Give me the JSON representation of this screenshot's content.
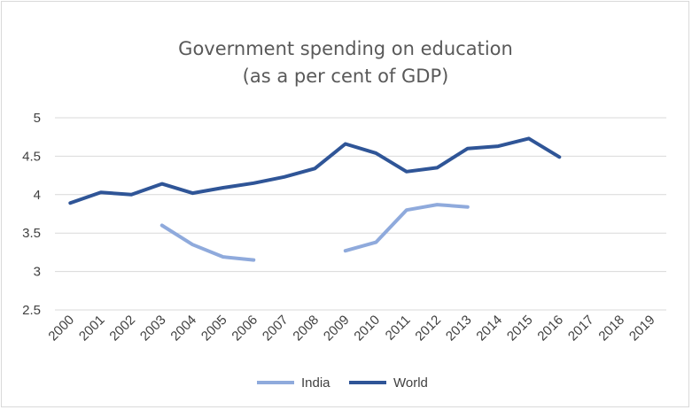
{
  "chart_data": {
    "type": "line",
    "title": [
      "Government spending on education",
      "(as a per cent of GDP)"
    ],
    "x": [
      "2000",
      "2001",
      "2002",
      "2003",
      "2004",
      "2005",
      "2006",
      "2007",
      "2008",
      "2009",
      "2010",
      "2011",
      "2012",
      "2013",
      "2014",
      "2015",
      "2016",
      "2017",
      "2018",
      "2019"
    ],
    "ylim": [
      2.5,
      5
    ],
    "yticks": [
      "2.5",
      "3",
      "3.5",
      "4",
      "4.5",
      "5"
    ],
    "grid": true,
    "legend": "bottom",
    "series": [
      {
        "name": "India",
        "color": "#8faadc",
        "values": [
          null,
          null,
          null,
          3.6,
          3.35,
          3.19,
          3.15,
          null,
          null,
          3.27,
          3.38,
          3.8,
          3.87,
          3.84,
          null,
          null,
          null,
          null,
          null,
          null
        ]
      },
      {
        "name": "World",
        "color": "#2f5597",
        "values": [
          3.89,
          4.03,
          4.0,
          4.14,
          4.02,
          4.09,
          4.15,
          4.23,
          4.34,
          4.66,
          4.54,
          4.3,
          4.35,
          4.6,
          4.63,
          4.73,
          4.49,
          null,
          null,
          null
        ]
      }
    ]
  }
}
